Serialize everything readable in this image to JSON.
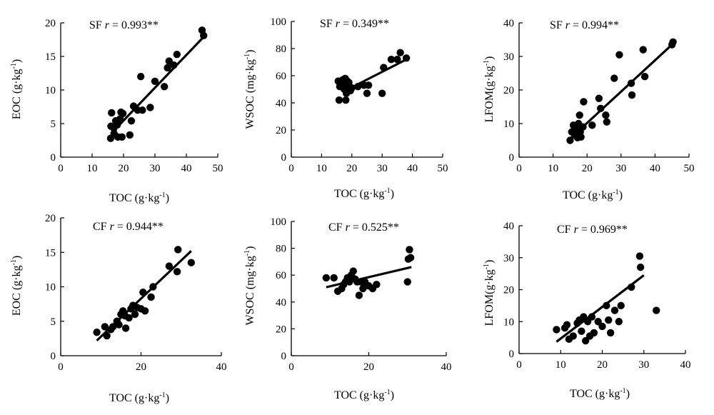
{
  "chart_data": [
    {
      "type": "scatter",
      "annotation": {
        "site": "SF",
        "r_label": "r = 0.993**"
      },
      "xlabel": "TOC (g·kg-1)",
      "ylabel": "EOC (g·kg-1)",
      "xlim": [
        0,
        50
      ],
      "ylim": [
        0,
        20
      ],
      "xticks": [
        "0",
        "10",
        "20",
        "30",
        "40",
        "50"
      ],
      "yticks": [
        "0",
        "5",
        "10",
        "15",
        "20"
      ],
      "points": [
        [
          15.9,
          2.8
        ],
        [
          16,
          4.6
        ],
        [
          16.2,
          6.6
        ],
        [
          16.9,
          4.3
        ],
        [
          17,
          3.5
        ],
        [
          17.5,
          5.4
        ],
        [
          18,
          4.8
        ],
        [
          18.2,
          3.0
        ],
        [
          18.9,
          5.7
        ],
        [
          19.2,
          6.7
        ],
        [
          19.5,
          3.0
        ],
        [
          19.8,
          6.5
        ],
        [
          22,
          3.3
        ],
        [
          22.5,
          5.4
        ],
        [
          23.2,
          7.6
        ],
        [
          24.5,
          7.0
        ],
        [
          25.5,
          12.0
        ],
        [
          26,
          7.0
        ],
        [
          28.5,
          7.4
        ],
        [
          30,
          11.3
        ],
        [
          33,
          10.5
        ],
        [
          34,
          13.3
        ],
        [
          34.5,
          14.3
        ],
        [
          36,
          13.7
        ],
        [
          37,
          15.3
        ],
        [
          45,
          18.9
        ],
        [
          45.5,
          18.1
        ]
      ],
      "trend": [
        [
          16,
          3.5
        ],
        [
          45.5,
          17.9
        ]
      ],
      "grid": false,
      "legend": "none"
    },
    {
      "type": "scatter",
      "annotation": {
        "site": "SF",
        "r_label": "r = 0.349**"
      },
      "xlabel": "TOC (g·kg-1)",
      "ylabel": "WSOC (mg·kg-1)",
      "xlim": [
        0,
        50
      ],
      "ylim": [
        0,
        100
      ],
      "xticks": [
        "0",
        "10",
        "20",
        "30",
        "40",
        "50"
      ],
      "yticks": [
        "0",
        "20",
        "40",
        "60",
        "80",
        "100"
      ],
      "points": [
        [
          15.5,
          56
        ],
        [
          15.8,
          42
        ],
        [
          16,
          52
        ],
        [
          16.5,
          55
        ],
        [
          17,
          57
        ],
        [
          17.2,
          54
        ],
        [
          17.5,
          50
        ],
        [
          17.8,
          58
        ],
        [
          18,
          42
        ],
        [
          18.2,
          47
        ],
        [
          18.5,
          56
        ],
        [
          18.8,
          53
        ],
        [
          19,
          55
        ],
        [
          19.5,
          49
        ],
        [
          20,
          51
        ],
        [
          22,
          52
        ],
        [
          24,
          53
        ],
        [
          25,
          47
        ],
        [
          25.5,
          53
        ],
        [
          30,
          47
        ],
        [
          30.5,
          66
        ],
        [
          33,
          72
        ],
        [
          35,
          72
        ],
        [
          36,
          77
        ],
        [
          38,
          73
        ]
      ],
      "trend": [
        [
          17,
          48
        ],
        [
          38,
          72
        ]
      ],
      "grid": false,
      "legend": "none"
    },
    {
      "type": "scatter",
      "annotation": {
        "site": "SF",
        "r_label": "r = 0.994**"
      },
      "xlabel": "TOC (g·kg-1)",
      "ylabel": "LFOM(g·kg-1)",
      "xlim": [
        0,
        50
      ],
      "ylim": [
        0,
        40
      ],
      "xticks": [
        "0",
        "10",
        "20",
        "30",
        "40",
        "50"
      ],
      "yticks": [
        "0",
        "10",
        "20",
        "30",
        "40"
      ],
      "points": [
        [
          15,
          5.0
        ],
        [
          15.5,
          7.5
        ],
        [
          16,
          9.5
        ],
        [
          16.5,
          6.5
        ],
        [
          17,
          8.5
        ],
        [
          17.2,
          5.8
        ],
        [
          17.5,
          10.0
        ],
        [
          17.8,
          12.5
        ],
        [
          18,
          7.5
        ],
        [
          18.2,
          6.0
        ],
        [
          18.8,
          9.0
        ],
        [
          19,
          16.5
        ],
        [
          21.5,
          9.5
        ],
        [
          23.5,
          17.5
        ],
        [
          24,
          14.5
        ],
        [
          25.5,
          12.5
        ],
        [
          25.8,
          10.5
        ],
        [
          28,
          23.5
        ],
        [
          29.5,
          30.5
        ],
        [
          33,
          22.0
        ],
        [
          33.2,
          18.5
        ],
        [
          36.5,
          32.0
        ],
        [
          37,
          24.0
        ],
        [
          45,
          33.5
        ],
        [
          45.3,
          34.3
        ]
      ],
      "trend": [
        [
          15,
          5.5
        ],
        [
          45.3,
          33.8
        ]
      ],
      "grid": false,
      "legend": "none"
    },
    {
      "type": "scatter",
      "annotation": {
        "site": "CF",
        "r_label": "r = 0.944**"
      },
      "xlabel": "TOC (g·kg-1)",
      "ylabel": "EOC (g·kg-1)",
      "xlim": [
        0,
        40
      ],
      "ylim": [
        0,
        20
      ],
      "xticks": [
        "0",
        "20",
        "40"
      ],
      "yticks": [
        "0",
        "5",
        "10",
        "15",
        "20"
      ],
      "points": [
        [
          9,
          3.4
        ],
        [
          11,
          4.2
        ],
        [
          11.5,
          2.9
        ],
        [
          12.5,
          3.8
        ],
        [
          13,
          4.2
        ],
        [
          14,
          5.0
        ],
        [
          14.5,
          4.5
        ],
        [
          15,
          6.0
        ],
        [
          15.5,
          6.5
        ],
        [
          16,
          5.8
        ],
        [
          16.2,
          4.0
        ],
        [
          17,
          5.5
        ],
        [
          17.5,
          6.8
        ],
        [
          18,
          7.3
        ],
        [
          18.5,
          6.0
        ],
        [
          19,
          7.0
        ],
        [
          20,
          6.8
        ],
        [
          20.5,
          9.2
        ],
        [
          21,
          6.5
        ],
        [
          22.5,
          8.5
        ],
        [
          23,
          10.0
        ],
        [
          27,
          13.0
        ],
        [
          29,
          12.2
        ],
        [
          29.2,
          15.4
        ],
        [
          32.5,
          13.5
        ]
      ],
      "trend": [
        [
          9,
          2.2
        ],
        [
          32.5,
          15.2
        ]
      ],
      "grid": false,
      "legend": "none"
    },
    {
      "type": "scatter",
      "annotation": {
        "site": "CF",
        "r_label": "r = 0.525**"
      },
      "xlabel": "TOC (g·kg-1)",
      "ylabel": "WSOC (mg·kg-1)",
      "xlim": [
        0,
        40
      ],
      "ylim": [
        0,
        100
      ],
      "xticks": [
        "0",
        "20",
        "40"
      ],
      "yticks": [
        "0",
        "20",
        "40",
        "60",
        "80",
        "100"
      ],
      "points": [
        [
          9,
          58
        ],
        [
          11,
          58
        ],
        [
          12,
          48
        ],
        [
          13,
          50
        ],
        [
          13.5,
          53
        ],
        [
          14,
          55
        ],
        [
          14.5,
          58
        ],
        [
          15,
          55
        ],
        [
          15.5,
          60
        ],
        [
          16,
          63
        ],
        [
          16.5,
          57
        ],
        [
          17,
          55
        ],
        [
          17.5,
          45
        ],
        [
          18,
          55
        ],
        [
          18.5,
          50
        ],
        [
          19,
          55
        ],
        [
          20,
          52
        ],
        [
          21,
          50
        ],
        [
          22,
          53
        ],
        [
          30,
          55
        ],
        [
          30.2,
          72
        ],
        [
          30.5,
          79
        ],
        [
          30.8,
          73
        ]
      ],
      "trend": [
        [
          9,
          51
        ],
        [
          31,
          66
        ]
      ],
      "grid": false,
      "legend": "none"
    },
    {
      "type": "scatter",
      "annotation": {
        "site": "CF",
        "r_label": "r = 0.969**"
      },
      "xlabel": "TOC (g·kg-1)",
      "ylabel": "LFOM(g·kg-1)",
      "xlim": [
        0,
        40
      ],
      "ylim": [
        0,
        40
      ],
      "xticks": [
        "0",
        "10",
        "20",
        "30",
        "40"
      ],
      "yticks": [
        "0",
        "10",
        "20",
        "30",
        "40"
      ],
      "points": [
        [
          9,
          7.5
        ],
        [
          11,
          8.0
        ],
        [
          11.5,
          9.0
        ],
        [
          12,
          4.5
        ],
        [
          13,
          5.5
        ],
        [
          14,
          9.5
        ],
        [
          14.5,
          10.5
        ],
        [
          15,
          7.0
        ],
        [
          15.5,
          11.5
        ],
        [
          16,
          4.0
        ],
        [
          16.5,
          10.0
        ],
        [
          17,
          5.5
        ],
        [
          17.5,
          11.5
        ],
        [
          18,
          6.5
        ],
        [
          19,
          10.0
        ],
        [
          20,
          8.5
        ],
        [
          21,
          15.0
        ],
        [
          21.5,
          10.5
        ],
        [
          22,
          6.5
        ],
        [
          23,
          13.5
        ],
        [
          24,
          10.0
        ],
        [
          24.5,
          15.0
        ],
        [
          27,
          20.8
        ],
        [
          29,
          30.5
        ],
        [
          29.2,
          27.0
        ],
        [
          33,
          13.5
        ]
      ],
      "trend": [
        [
          9,
          3.7
        ],
        [
          30,
          24.5
        ]
      ],
      "grid": false,
      "legend": "none"
    }
  ]
}
